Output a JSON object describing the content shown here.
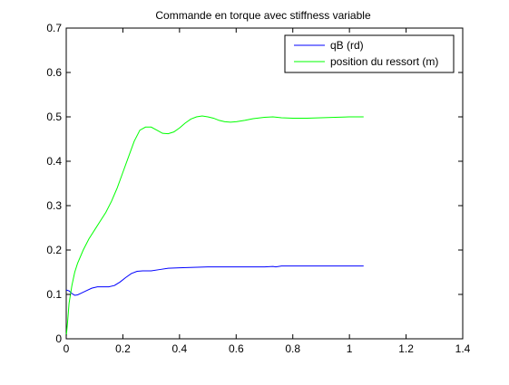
{
  "chart_data": {
    "type": "line",
    "title": "Commande en torque avec stiffness variable",
    "xlabel": "",
    "ylabel": "",
    "xlim": [
      0,
      1.4
    ],
    "ylim": [
      0,
      0.7
    ],
    "xticks": [
      0,
      0.2,
      0.4,
      0.6,
      0.8,
      1,
      1.2,
      1.4
    ],
    "yticks": [
      0,
      0.1,
      0.2,
      0.3,
      0.4,
      0.5,
      0.6,
      0.7
    ],
    "xtick_labels": [
      "0",
      "0.2",
      "0.4",
      "0.6",
      "0.8",
      "1",
      "1.2",
      "1.4"
    ],
    "ytick_labels": [
      "0",
      "0.1",
      "0.2",
      "0.3",
      "0.4",
      "0.5",
      "0.6",
      "0.7"
    ],
    "grid": false,
    "legend_position": "top-right",
    "series": [
      {
        "name": "qB (rd)",
        "color": "#0000ff",
        "x": [
          0,
          0.01,
          0.02,
          0.03,
          0.04,
          0.05,
          0.07,
          0.09,
          0.11,
          0.13,
          0.15,
          0.17,
          0.19,
          0.21,
          0.23,
          0.25,
          0.27,
          0.3,
          0.33,
          0.36,
          0.4,
          0.45,
          0.5,
          0.55,
          0.6,
          0.65,
          0.7,
          0.73,
          0.74,
          0.76,
          0.8,
          0.9,
          1.0,
          1.05
        ],
        "y": [
          0.11,
          0.108,
          0.102,
          0.098,
          0.099,
          0.102,
          0.108,
          0.114,
          0.117,
          0.117,
          0.117,
          0.12,
          0.128,
          0.138,
          0.147,
          0.152,
          0.153,
          0.153,
          0.156,
          0.159,
          0.16,
          0.161,
          0.162,
          0.162,
          0.162,
          0.162,
          0.162,
          0.163,
          0.162,
          0.164,
          0.164,
          0.164,
          0.164,
          0.164
        ]
      },
      {
        "name": "position du ressort (m)",
        "color": "#00ff00",
        "x": [
          0,
          0.005,
          0.01,
          0.02,
          0.03,
          0.04,
          0.06,
          0.08,
          0.1,
          0.12,
          0.14,
          0.16,
          0.18,
          0.2,
          0.22,
          0.24,
          0.26,
          0.28,
          0.3,
          0.32,
          0.34,
          0.36,
          0.38,
          0.4,
          0.42,
          0.44,
          0.46,
          0.48,
          0.5,
          0.52,
          0.54,
          0.56,
          0.58,
          0.6,
          0.63,
          0.66,
          0.7,
          0.73,
          0.76,
          0.8,
          0.85,
          0.9,
          0.95,
          1.0,
          1.05
        ],
        "y": [
          0.005,
          0.04,
          0.08,
          0.12,
          0.15,
          0.17,
          0.2,
          0.225,
          0.245,
          0.265,
          0.285,
          0.31,
          0.34,
          0.375,
          0.41,
          0.445,
          0.47,
          0.477,
          0.477,
          0.47,
          0.463,
          0.462,
          0.466,
          0.475,
          0.486,
          0.495,
          0.5,
          0.502,
          0.5,
          0.497,
          0.492,
          0.489,
          0.488,
          0.489,
          0.492,
          0.496,
          0.499,
          0.5,
          0.498,
          0.497,
          0.497,
          0.498,
          0.499,
          0.5,
          0.5
        ]
      }
    ]
  }
}
